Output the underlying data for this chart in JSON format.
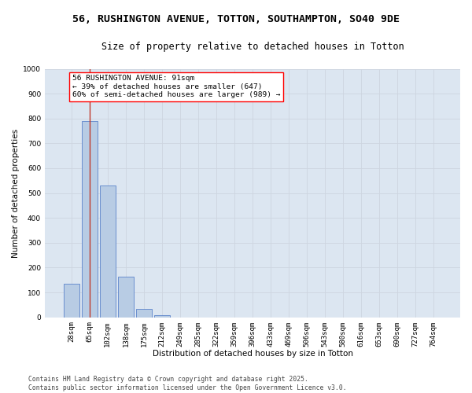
{
  "title_line1": "56, RUSHINGTON AVENUE, TOTTON, SOUTHAMPTON, SO40 9DE",
  "title_line2": "Size of property relative to detached houses in Totton",
  "xlabel": "Distribution of detached houses by size in Totton",
  "ylabel": "Number of detached properties",
  "categories": [
    "28sqm",
    "65sqm",
    "102sqm",
    "138sqm",
    "175sqm",
    "212sqm",
    "249sqm",
    "285sqm",
    "322sqm",
    "359sqm",
    "396sqm",
    "433sqm",
    "469sqm",
    "506sqm",
    "543sqm",
    "580sqm",
    "616sqm",
    "653sqm",
    "690sqm",
    "727sqm",
    "764sqm"
  ],
  "values": [
    135,
    790,
    530,
    165,
    35,
    10,
    0,
    0,
    0,
    0,
    0,
    0,
    0,
    0,
    0,
    0,
    0,
    0,
    0,
    0,
    0
  ],
  "bar_color": "#b8cce4",
  "bar_edge_color": "#4472c4",
  "grid_color": "#cdd5e0",
  "background_color": "#dce6f1",
  "annotation_text": "56 RUSHINGTON AVENUE: 91sqm\n← 39% of detached houses are smaller (647)\n60% of semi-detached houses are larger (989) →",
  "vline_x": 1.0,
  "vline_color": "#c0392b",
  "ylim": [
    0,
    1000
  ],
  "yticks": [
    0,
    100,
    200,
    300,
    400,
    500,
    600,
    700,
    800,
    900,
    1000
  ],
  "footer_line1": "Contains HM Land Registry data © Crown copyright and database right 2025.",
  "footer_line2": "Contains public sector information licensed under the Open Government Licence v3.0.",
  "title_fontsize": 9.5,
  "subtitle_fontsize": 8.5,
  "axis_label_fontsize": 7.5,
  "tick_fontsize": 6.5,
  "annotation_fontsize": 6.8,
  "footer_fontsize": 5.8
}
